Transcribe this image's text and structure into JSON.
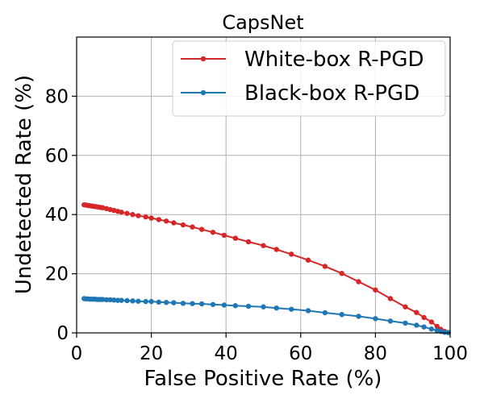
{
  "chart_data": {
    "type": "line",
    "title": "CapsNet",
    "xlabel": "False Positive Rate (%)",
    "ylabel": "Undetected Rate (%)",
    "xlim": [
      0,
      100
    ],
    "ylim": [
      0,
      100
    ],
    "xticks": [
      0,
      20,
      40,
      60,
      80,
      100
    ],
    "yticks": [
      0,
      20,
      40,
      60,
      80
    ],
    "grid": true,
    "legend_position": "top-right",
    "series": [
      {
        "name": "White-box R-PGD",
        "color": "#d62728",
        "x": [
          2,
          2.5,
          3,
          3.5,
          4,
          4.5,
          5,
          5.5,
          6,
          6.5,
          7,
          8,
          9,
          10,
          11,
          12,
          13.5,
          15,
          16.5,
          18.5,
          20,
          22,
          24,
          26,
          28.5,
          31,
          33.5,
          36.5,
          39.5,
          42.5,
          46,
          50,
          53.5,
          57.5,
          62,
          66.5,
          71,
          75.5,
          80,
          84,
          88,
          91,
          93,
          95,
          96.5,
          97.5,
          98.5,
          99.5
        ],
        "y": [
          43.3,
          43.2,
          43.1,
          43.0,
          42.9,
          42.8,
          42.7,
          42.6,
          42.5,
          42.4,
          42.3,
          42.0,
          41.7,
          41.4,
          41.1,
          40.8,
          40.4,
          40.0,
          39.6,
          39.2,
          38.8,
          38.3,
          37.8,
          37.2,
          36.5,
          35.8,
          35.0,
          34.0,
          33.0,
          32.0,
          30.8,
          29.5,
          28.2,
          26.6,
          24.6,
          22.5,
          20.1,
          17.3,
          14.5,
          11.6,
          8.8,
          6.9,
          5.2,
          3.7,
          2.2,
          1.2,
          0.5,
          0.1
        ]
      },
      {
        "name": "Black-box R-PGD",
        "color": "#1f77b4",
        "x": [
          2,
          2.5,
          3,
          3.5,
          4,
          4.5,
          5,
          5.5,
          6,
          6.5,
          7,
          8,
          9,
          10,
          11,
          12,
          13.5,
          15,
          16.5,
          18.5,
          20,
          22,
          24,
          26,
          28.5,
          31,
          33.5,
          36.5,
          39.5,
          42.5,
          46,
          50,
          53.5,
          57.5,
          62,
          66.5,
          71,
          75.5,
          80,
          84,
          88,
          91,
          93,
          95,
          96.5,
          97.5,
          98.5,
          99.5
        ],
        "y": [
          11.6,
          11.5,
          11.5,
          11.4,
          11.4,
          11.4,
          11.4,
          11.3,
          11.3,
          11.3,
          11.3,
          11.2,
          11.2,
          11.1,
          11.0,
          11.0,
          10.9,
          10.8,
          10.7,
          10.6,
          10.6,
          10.4,
          10.3,
          10.2,
          10.0,
          9.9,
          9.8,
          9.6,
          9.4,
          9.2,
          9.0,
          8.8,
          8.4,
          8.0,
          7.5,
          6.8,
          6.2,
          5.6,
          4.8,
          4.0,
          3.3,
          2.6,
          2.0,
          1.3,
          0.8,
          0.5,
          0.2,
          0.1
        ]
      }
    ]
  }
}
